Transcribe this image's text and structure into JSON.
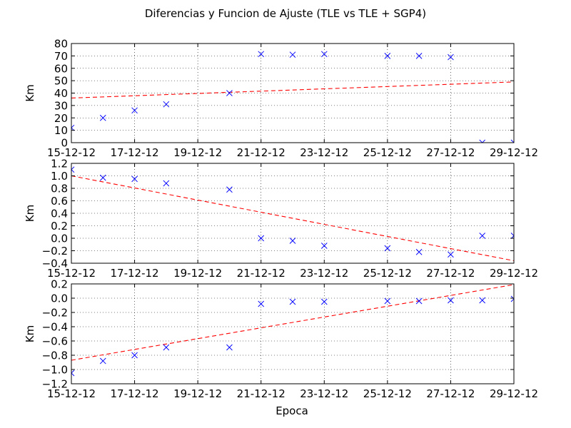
{
  "figure": {
    "title": "Diferencias y Funcion de Ajuste (TLE vs TLE + SGP4)",
    "xlabel": "Epoca",
    "x_tick_labels": [
      "15-12-12",
      "17-12-12",
      "19-12-12",
      "21-12-12",
      "23-12-12",
      "25-12-12",
      "27-12-12",
      "29-12-12"
    ]
  },
  "chart_data": [
    {
      "type": "scatter",
      "ylabel": "Km",
      "xlim": [
        "15-12-12",
        "29-12-12"
      ],
      "ylim": [
        0,
        80
      ],
      "yticks": [
        0,
        10,
        20,
        30,
        40,
        50,
        60,
        70,
        80
      ],
      "y_tick_labels": [
        "0",
        "10",
        "20",
        "30",
        "40",
        "50",
        "60",
        "70",
        "80"
      ],
      "grid": true,
      "x": [
        "15-12-12",
        "16-12-12",
        "17-12-12",
        "18-12-12",
        "20-12-12",
        "21-12-12",
        "22-12-12",
        "23-12-12",
        "25-12-12",
        "26-12-12",
        "27-12-12",
        "28-12-12",
        "29-12-12"
      ],
      "y": [
        12,
        20,
        26,
        31,
        40,
        71.5,
        71,
        71.5,
        70,
        70,
        69,
        0,
        0
      ],
      "fit": {
        "x": [
          "15-12-12",
          "29-12-12"
        ],
        "y": [
          36,
          49
        ]
      },
      "colors": {
        "points": "#0000ff",
        "fit": "#ff0000"
      }
    },
    {
      "type": "scatter",
      "ylabel": "Km",
      "xlim": [
        "15-12-12",
        "29-12-12"
      ],
      "ylim": [
        -0.4,
        1.2
      ],
      "yticks": [
        -0.4,
        -0.2,
        0.0,
        0.2,
        0.4,
        0.6,
        0.8,
        1.0,
        1.2
      ],
      "y_tick_labels": [
        "−0.4",
        "−0.2",
        "0.0",
        "0.2",
        "0.4",
        "0.6",
        "0.8",
        "1.0",
        "1.2"
      ],
      "grid": true,
      "x": [
        "15-12-12",
        "16-12-12",
        "17-12-12",
        "18-12-12",
        "20-12-12",
        "21-12-12",
        "22-12-12",
        "23-12-12",
        "25-12-12",
        "26-12-12",
        "27-12-12",
        "28-12-12",
        "29-12-12"
      ],
      "y": [
        1.1,
        0.97,
        0.95,
        0.88,
        0.78,
        0.0,
        -0.04,
        -0.12,
        -0.16,
        -0.22,
        -0.26,
        0.04,
        0.04
      ],
      "fit": {
        "x": [
          "15-12-12",
          "29-12-12"
        ],
        "y": [
          1.0,
          -0.36
        ]
      },
      "colors": {
        "points": "#0000ff",
        "fit": "#ff0000"
      }
    },
    {
      "type": "scatter",
      "ylabel": "Km",
      "xlim": [
        "15-12-12",
        "29-12-12"
      ],
      "ylim": [
        -1.2,
        0.2
      ],
      "yticks": [
        -1.2,
        -1.0,
        -0.8,
        -0.6,
        -0.4,
        -0.2,
        0.0,
        0.2
      ],
      "y_tick_labels": [
        "−1.2",
        "−1.0",
        "−0.8",
        "−0.6",
        "−0.4",
        "−0.2",
        "0.0",
        "0.2"
      ],
      "grid": true,
      "x": [
        "15-12-12",
        "16-12-12",
        "17-12-12",
        "18-12-12",
        "20-12-12",
        "21-12-12",
        "22-12-12",
        "23-12-12",
        "25-12-12",
        "26-12-12",
        "27-12-12",
        "28-12-12",
        "29-12-12"
      ],
      "y": [
        -1.05,
        -0.88,
        -0.8,
        -0.69,
        -0.69,
        -0.08,
        -0.05,
        -0.05,
        -0.04,
        -0.04,
        -0.03,
        -0.03,
        -0.01
      ],
      "fit": {
        "x": [
          "15-12-12",
          "29-12-12"
        ],
        "y": [
          -0.87,
          0.19
        ]
      },
      "colors": {
        "points": "#0000ff",
        "fit": "#ff0000"
      }
    }
  ]
}
